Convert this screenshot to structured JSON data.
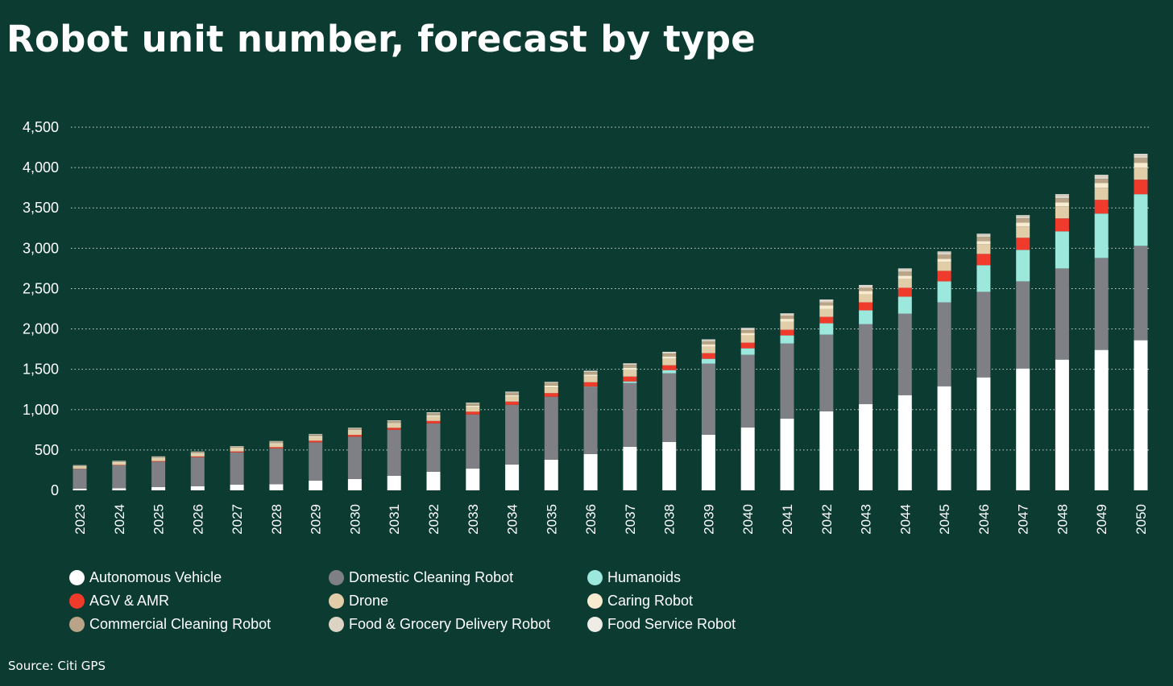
{
  "title": "Robot unit number, forecast by type",
  "source": "Source: Citi GPS",
  "chart_data": {
    "type": "bar",
    "stacked": true,
    "title": "Robot unit number, forecast by type",
    "xlabel": "",
    "ylabel": "",
    "ylim": [
      0,
      4500
    ],
    "yticks": [
      0,
      500,
      1000,
      1500,
      2000,
      2500,
      3000,
      3500,
      4000,
      4500
    ],
    "ytick_labels": [
      "0",
      "500",
      "1,000",
      "1,500",
      "2,000",
      "2,500",
      "3,000",
      "3,500",
      "4,000",
      "4,500"
    ],
    "grid": true,
    "legend_position": "bottom",
    "categories": [
      "2023",
      "2024",
      "2025",
      "2026",
      "2027",
      "2028",
      "2029",
      "2030",
      "2031",
      "2032",
      "2033",
      "2034",
      "2035",
      "2036",
      "2037",
      "2038",
      "2039",
      "2040",
      "2041",
      "2042",
      "2043",
      "2044",
      "2045",
      "2046",
      "2047",
      "2048",
      "2049",
      "2050"
    ],
    "series": [
      {
        "name": "Autonomous Vehicle",
        "color": "#ffffff",
        "values": [
          20,
          25,
          40,
          50,
          70,
          75,
          120,
          140,
          180,
          230,
          270,
          320,
          380,
          450,
          540,
          600,
          690,
          780,
          890,
          980,
          1070,
          1180,
          1290,
          1400,
          1510,
          1620,
          1740,
          1860
        ]
      },
      {
        "name": "Domestic Cleaning Robot",
        "color": "#7f8086",
        "values": [
          245,
          285,
          315,
          360,
          400,
          445,
          475,
          525,
          570,
          600,
          670,
          740,
          780,
          830,
          790,
          850,
          880,
          900,
          930,
          950,
          990,
          1010,
          1040,
          1060,
          1080,
          1130,
          1140,
          1170
        ]
      },
      {
        "name": "Humanoids",
        "color": "#9de8dc",
        "values": [
          0,
          0,
          0,
          0,
          0,
          0,
          0,
          0,
          0,
          0,
          0,
          0,
          0,
          5,
          20,
          40,
          60,
          80,
          100,
          140,
          170,
          210,
          260,
          330,
          390,
          460,
          550,
          640
        ]
      },
      {
        "name": "AGV & AMR",
        "color": "#f03a2c",
        "values": [
          3,
          5,
          8,
          10,
          12,
          15,
          20,
          22,
          25,
          30,
          35,
          40,
          45,
          55,
          60,
          60,
          70,
          70,
          70,
          80,
          100,
          110,
          130,
          140,
          150,
          160,
          170,
          180
        ]
      },
      {
        "name": "Drone",
        "color": "#e2cda9",
        "values": [
          20,
          25,
          30,
          30,
          32,
          35,
          40,
          45,
          45,
          50,
          55,
          60,
          70,
          70,
          80,
          80,
          80,
          90,
          100,
          100,
          100,
          110,
          110,
          120,
          140,
          150,
          150,
          150
        ]
      },
      {
        "name": "Caring Robot",
        "color": "#f8ebcf",
        "values": [
          10,
          10,
          10,
          10,
          10,
          15,
          15,
          15,
          15,
          20,
          20,
          20,
          25,
          25,
          30,
          30,
          30,
          30,
          35,
          40,
          40,
          40,
          40,
          40,
          50,
          50,
          60,
          60
        ]
      },
      {
        "name": "Commercial Cleaning Robot",
        "color": "#b9a488",
        "values": [
          10,
          12,
          12,
          15,
          15,
          18,
          20,
          20,
          22,
          25,
          25,
          30,
          30,
          30,
          35,
          35,
          35,
          35,
          40,
          40,
          40,
          50,
          50,
          50,
          50,
          50,
          50,
          60
        ]
      },
      {
        "name": "Food & Grocery Delivery Robot",
        "color": "#ddd4c6",
        "values": [
          3,
          3,
          4,
          4,
          5,
          5,
          6,
          6,
          7,
          8,
          8,
          9,
          10,
          12,
          14,
          16,
          18,
          20,
          20,
          25,
          25,
          30,
          30,
          30,
          30,
          40,
          40,
          40
        ]
      },
      {
        "name": "Food Service Robot",
        "color": "#efece6",
        "values": [
          2,
          2,
          2,
          2,
          3,
          3,
          3,
          3,
          4,
          4,
          4,
          5,
          5,
          5,
          6,
          6,
          8,
          8,
          8,
          10,
          10,
          10,
          10,
          10,
          10,
          10,
          10,
          10
        ]
      }
    ]
  }
}
